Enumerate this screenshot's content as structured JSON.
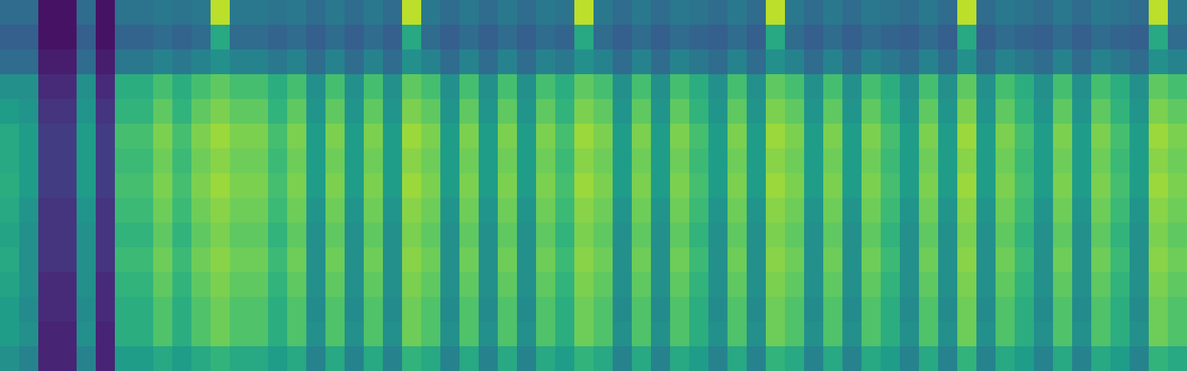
{
  "chart_data": {
    "type": "heatmap",
    "color": "viridis",
    "tick_labels": false,
    "grid": false,
    "cells": [
      [
        0.35,
        0.35,
        0.05,
        0.05,
        0.35,
        0.05,
        0.38,
        0.38,
        0.4,
        0.38,
        0.4,
        0.9,
        0.4,
        0.4,
        0.38,
        0.4,
        0.35,
        0.4,
        0.35,
        0.4,
        0.35,
        0.9,
        0.4,
        0.35,
        0.4,
        0.35,
        0.4,
        0.35,
        0.4,
        0.38,
        0.9,
        0.4,
        0.35,
        0.4,
        0.35,
        0.4,
        0.38,
        0.35,
        0.4,
        0.35,
        0.9,
        0.4,
        0.35,
        0.4,
        0.35,
        0.4,
        0.38,
        0.35,
        0.4,
        0.35,
        0.9,
        0.35,
        0.4,
        0.38,
        0.35,
        0.4,
        0.35,
        0.4,
        0.38,
        0.35,
        0.9,
        0.4
      ],
      [
        0.3,
        0.3,
        0.05,
        0.05,
        0.3,
        0.05,
        0.32,
        0.32,
        0.35,
        0.32,
        0.35,
        0.6,
        0.35,
        0.35,
        0.32,
        0.35,
        0.3,
        0.35,
        0.3,
        0.35,
        0.3,
        0.6,
        0.35,
        0.3,
        0.35,
        0.3,
        0.35,
        0.3,
        0.35,
        0.32,
        0.6,
        0.35,
        0.3,
        0.35,
        0.3,
        0.35,
        0.32,
        0.3,
        0.35,
        0.3,
        0.6,
        0.35,
        0.3,
        0.35,
        0.3,
        0.35,
        0.32,
        0.3,
        0.35,
        0.3,
        0.6,
        0.3,
        0.35,
        0.32,
        0.3,
        0.35,
        0.3,
        0.35,
        0.32,
        0.3,
        0.6,
        0.35
      ],
      [
        0.35,
        0.35,
        0.08,
        0.08,
        0.35,
        0.08,
        0.4,
        0.4,
        0.45,
        0.4,
        0.45,
        0.5,
        0.45,
        0.45,
        0.4,
        0.45,
        0.35,
        0.45,
        0.35,
        0.45,
        0.35,
        0.5,
        0.45,
        0.35,
        0.45,
        0.35,
        0.45,
        0.35,
        0.45,
        0.4,
        0.5,
        0.45,
        0.35,
        0.45,
        0.35,
        0.45,
        0.4,
        0.35,
        0.45,
        0.35,
        0.5,
        0.45,
        0.35,
        0.45,
        0.35,
        0.45,
        0.4,
        0.35,
        0.45,
        0.35,
        0.5,
        0.35,
        0.45,
        0.4,
        0.35,
        0.45,
        0.35,
        0.45,
        0.4,
        0.35,
        0.5,
        0.45
      ],
      [
        0.5,
        0.5,
        0.12,
        0.12,
        0.5,
        0.12,
        0.62,
        0.62,
        0.7,
        0.62,
        0.7,
        0.75,
        0.7,
        0.7,
        0.62,
        0.7,
        0.5,
        0.7,
        0.5,
        0.7,
        0.5,
        0.75,
        0.7,
        0.5,
        0.7,
        0.5,
        0.7,
        0.5,
        0.7,
        0.62,
        0.75,
        0.7,
        0.5,
        0.7,
        0.5,
        0.7,
        0.62,
        0.5,
        0.7,
        0.5,
        0.75,
        0.7,
        0.5,
        0.7,
        0.5,
        0.7,
        0.62,
        0.5,
        0.7,
        0.5,
        0.75,
        0.5,
        0.7,
        0.62,
        0.5,
        0.7,
        0.5,
        0.7,
        0.62,
        0.5,
        0.75,
        0.7
      ],
      [
        0.55,
        0.52,
        0.15,
        0.15,
        0.52,
        0.15,
        0.65,
        0.65,
        0.75,
        0.65,
        0.75,
        0.8,
        0.75,
        0.75,
        0.65,
        0.75,
        0.52,
        0.75,
        0.52,
        0.75,
        0.52,
        0.8,
        0.75,
        0.52,
        0.75,
        0.52,
        0.75,
        0.52,
        0.75,
        0.65,
        0.8,
        0.75,
        0.52,
        0.75,
        0.52,
        0.75,
        0.65,
        0.52,
        0.75,
        0.52,
        0.8,
        0.75,
        0.52,
        0.75,
        0.52,
        0.75,
        0.65,
        0.52,
        0.75,
        0.52,
        0.8,
        0.52,
        0.75,
        0.65,
        0.52,
        0.75,
        0.52,
        0.75,
        0.65,
        0.52,
        0.8,
        0.75
      ],
      [
        0.6,
        0.55,
        0.18,
        0.18,
        0.55,
        0.18,
        0.7,
        0.7,
        0.8,
        0.7,
        0.8,
        0.85,
        0.8,
        0.8,
        0.7,
        0.8,
        0.55,
        0.8,
        0.55,
        0.8,
        0.55,
        0.85,
        0.8,
        0.55,
        0.8,
        0.55,
        0.8,
        0.55,
        0.8,
        0.7,
        0.85,
        0.8,
        0.55,
        0.8,
        0.55,
        0.8,
        0.7,
        0.55,
        0.8,
        0.55,
        0.85,
        0.8,
        0.55,
        0.8,
        0.55,
        0.8,
        0.7,
        0.55,
        0.8,
        0.55,
        0.85,
        0.55,
        0.8,
        0.7,
        0.55,
        0.8,
        0.55,
        0.8,
        0.7,
        0.55,
        0.85,
        0.8
      ],
      [
        0.6,
        0.55,
        0.18,
        0.18,
        0.55,
        0.18,
        0.68,
        0.68,
        0.78,
        0.68,
        0.78,
        0.82,
        0.78,
        0.78,
        0.68,
        0.78,
        0.55,
        0.78,
        0.55,
        0.78,
        0.55,
        0.82,
        0.78,
        0.55,
        0.78,
        0.55,
        0.78,
        0.55,
        0.78,
        0.68,
        0.82,
        0.78,
        0.55,
        0.78,
        0.55,
        0.78,
        0.68,
        0.55,
        0.78,
        0.55,
        0.82,
        0.78,
        0.55,
        0.78,
        0.55,
        0.78,
        0.68,
        0.55,
        0.78,
        0.55,
        0.82,
        0.55,
        0.78,
        0.68,
        0.55,
        0.78,
        0.55,
        0.78,
        0.68,
        0.55,
        0.82,
        0.78
      ],
      [
        0.62,
        0.55,
        0.18,
        0.18,
        0.55,
        0.18,
        0.7,
        0.7,
        0.8,
        0.7,
        0.8,
        0.85,
        0.8,
        0.8,
        0.7,
        0.8,
        0.55,
        0.8,
        0.55,
        0.8,
        0.55,
        0.85,
        0.8,
        0.55,
        0.8,
        0.55,
        0.8,
        0.55,
        0.8,
        0.7,
        0.85,
        0.8,
        0.55,
        0.8,
        0.55,
        0.8,
        0.7,
        0.55,
        0.8,
        0.55,
        0.85,
        0.8,
        0.55,
        0.8,
        0.55,
        0.8,
        0.7,
        0.55,
        0.8,
        0.55,
        0.85,
        0.55,
        0.8,
        0.7,
        0.55,
        0.8,
        0.55,
        0.8,
        0.7,
        0.55,
        0.85,
        0.8
      ],
      [
        0.6,
        0.52,
        0.15,
        0.15,
        0.52,
        0.15,
        0.68,
        0.68,
        0.78,
        0.68,
        0.78,
        0.82,
        0.78,
        0.78,
        0.68,
        0.78,
        0.52,
        0.78,
        0.52,
        0.78,
        0.52,
        0.82,
        0.78,
        0.52,
        0.78,
        0.52,
        0.78,
        0.52,
        0.78,
        0.68,
        0.82,
        0.78,
        0.52,
        0.78,
        0.52,
        0.78,
        0.68,
        0.52,
        0.78,
        0.52,
        0.82,
        0.78,
        0.52,
        0.78,
        0.52,
        0.78,
        0.68,
        0.52,
        0.78,
        0.52,
        0.82,
        0.52,
        0.78,
        0.68,
        0.52,
        0.78,
        0.52,
        0.78,
        0.68,
        0.52,
        0.82,
        0.78
      ],
      [
        0.58,
        0.5,
        0.15,
        0.15,
        0.5,
        0.15,
        0.65,
        0.65,
        0.75,
        0.65,
        0.75,
        0.8,
        0.75,
        0.75,
        0.65,
        0.75,
        0.5,
        0.75,
        0.5,
        0.75,
        0.5,
        0.8,
        0.75,
        0.5,
        0.75,
        0.5,
        0.75,
        0.5,
        0.75,
        0.65,
        0.8,
        0.75,
        0.5,
        0.75,
        0.5,
        0.75,
        0.65,
        0.5,
        0.75,
        0.5,
        0.8,
        0.75,
        0.5,
        0.75,
        0.5,
        0.75,
        0.65,
        0.5,
        0.75,
        0.5,
        0.8,
        0.5,
        0.75,
        0.65,
        0.5,
        0.75,
        0.5,
        0.75,
        0.65,
        0.5,
        0.8,
        0.75
      ],
      [
        0.6,
        0.5,
        0.15,
        0.15,
        0.5,
        0.15,
        0.68,
        0.68,
        0.78,
        0.68,
        0.78,
        0.82,
        0.78,
        0.78,
        0.68,
        0.78,
        0.5,
        0.78,
        0.5,
        0.78,
        0.5,
        0.82,
        0.78,
        0.5,
        0.78,
        0.5,
        0.78,
        0.5,
        0.78,
        0.68,
        0.82,
        0.78,
        0.5,
        0.78,
        0.5,
        0.78,
        0.68,
        0.5,
        0.78,
        0.5,
        0.82,
        0.78,
        0.5,
        0.78,
        0.5,
        0.78,
        0.68,
        0.5,
        0.78,
        0.5,
        0.82,
        0.5,
        0.78,
        0.68,
        0.5,
        0.78,
        0.5,
        0.78,
        0.68,
        0.5,
        0.82,
        0.78
      ],
      [
        0.58,
        0.5,
        0.12,
        0.12,
        0.5,
        0.12,
        0.65,
        0.65,
        0.75,
        0.65,
        0.75,
        0.8,
        0.75,
        0.75,
        0.65,
        0.75,
        0.5,
        0.75,
        0.5,
        0.75,
        0.5,
        0.8,
        0.75,
        0.5,
        0.75,
        0.5,
        0.75,
        0.5,
        0.75,
        0.65,
        0.8,
        0.75,
        0.5,
        0.75,
        0.5,
        0.75,
        0.65,
        0.5,
        0.75,
        0.5,
        0.8,
        0.75,
        0.5,
        0.75,
        0.5,
        0.75,
        0.65,
        0.5,
        0.75,
        0.5,
        0.8,
        0.5,
        0.75,
        0.65,
        0.5,
        0.75,
        0.5,
        0.75,
        0.65,
        0.5,
        0.8,
        0.75
      ],
      [
        0.55,
        0.48,
        0.12,
        0.12,
        0.48,
        0.12,
        0.62,
        0.62,
        0.72,
        0.62,
        0.72,
        0.78,
        0.72,
        0.72,
        0.62,
        0.72,
        0.48,
        0.72,
        0.48,
        0.72,
        0.48,
        0.78,
        0.72,
        0.48,
        0.72,
        0.48,
        0.72,
        0.48,
        0.72,
        0.62,
        0.78,
        0.72,
        0.48,
        0.72,
        0.48,
        0.72,
        0.62,
        0.48,
        0.72,
        0.48,
        0.78,
        0.72,
        0.48,
        0.72,
        0.48,
        0.72,
        0.62,
        0.48,
        0.72,
        0.48,
        0.78,
        0.48,
        0.72,
        0.62,
        0.48,
        0.72,
        0.48,
        0.72,
        0.62,
        0.48,
        0.78,
        0.72
      ],
      [
        0.55,
        0.5,
        0.1,
        0.1,
        0.5,
        0.1,
        0.62,
        0.62,
        0.72,
        0.62,
        0.72,
        0.78,
        0.72,
        0.72,
        0.62,
        0.72,
        0.5,
        0.72,
        0.5,
        0.72,
        0.5,
        0.78,
        0.72,
        0.5,
        0.72,
        0.5,
        0.72,
        0.5,
        0.72,
        0.62,
        0.78,
        0.72,
        0.5,
        0.72,
        0.5,
        0.72,
        0.62,
        0.5,
        0.72,
        0.5,
        0.78,
        0.72,
        0.5,
        0.72,
        0.5,
        0.72,
        0.62,
        0.5,
        0.72,
        0.5,
        0.78,
        0.5,
        0.72,
        0.62,
        0.5,
        0.72,
        0.5,
        0.72,
        0.62,
        0.5,
        0.78,
        0.72
      ],
      [
        0.5,
        0.45,
        0.1,
        0.1,
        0.45,
        0.1,
        0.55,
        0.55,
        0.6,
        0.55,
        0.6,
        0.65,
        0.6,
        0.6,
        0.55,
        0.6,
        0.45,
        0.6,
        0.45,
        0.6,
        0.45,
        0.65,
        0.6,
        0.45,
        0.6,
        0.45,
        0.6,
        0.45,
        0.6,
        0.55,
        0.65,
        0.6,
        0.45,
        0.6,
        0.45,
        0.6,
        0.55,
        0.45,
        0.6,
        0.45,
        0.65,
        0.6,
        0.45,
        0.6,
        0.45,
        0.6,
        0.55,
        0.45,
        0.6,
        0.45,
        0.65,
        0.45,
        0.6,
        0.55,
        0.45,
        0.6,
        0.45,
        0.6,
        0.55,
        0.45,
        0.65,
        0.6
      ]
    ]
  }
}
